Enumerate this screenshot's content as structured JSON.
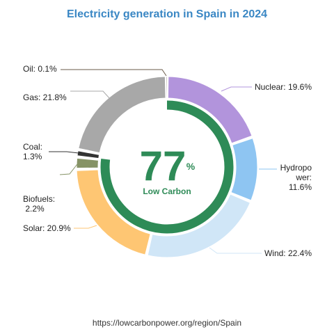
{
  "chart_data": {
    "type": "pie",
    "title": "Electricity generation in Spain in 2024",
    "slices": [
      {
        "name": "Nuclear",
        "value": 19.6,
        "color": "#b294dc",
        "label_lines": [
          "Nuclear: 19.6%"
        ]
      },
      {
        "name": "Hydropower",
        "value": 11.6,
        "color": "#8ec5f2",
        "label_lines": [
          "Hydropo",
          "wer:",
          "11.6%"
        ]
      },
      {
        "name": "Wind",
        "value": 22.4,
        "color": "#d0e6f7",
        "label_lines": [
          "Wind: 22.4%"
        ]
      },
      {
        "name": "Solar",
        "value": 20.9,
        "color": "#fec673",
        "label_lines": [
          "Solar: 20.9%"
        ]
      },
      {
        "name": "Biofuels",
        "value": 2.2,
        "color": "#869366",
        "label_lines": [
          "Biofuels:",
          " 2.2%"
        ]
      },
      {
        "name": "Coal",
        "value": 1.3,
        "color": "#333333",
        "label_lines": [
          "Coal:",
          "1.3%"
        ]
      },
      {
        "name": "Gas",
        "value": 21.8,
        "color": "#a8a8a8",
        "label_lines": [
          "Gas: 21.8%"
        ]
      },
      {
        "name": "Oil",
        "value": 0.1,
        "color": "#6a5a4a",
        "label_lines": [
          "Oil: 0.1%"
        ]
      }
    ],
    "center": {
      "value": "77",
      "unit": "%",
      "caption": "Low Carbon",
      "fraction": 0.77,
      "color": "#2e8b57"
    }
  },
  "footer": {
    "source": "https://lowcarbonpower.org/region/Spain"
  }
}
